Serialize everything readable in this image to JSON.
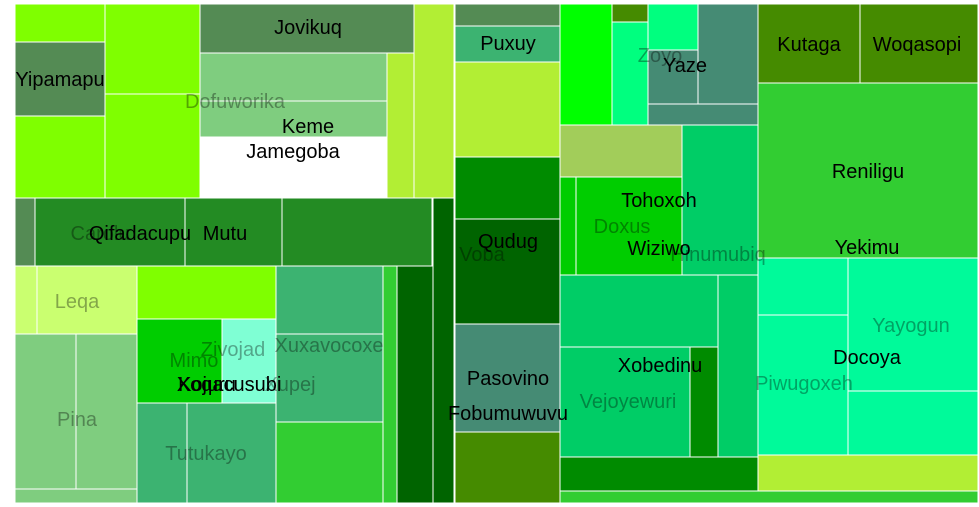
{
  "chart_data": {
    "type": "treemap",
    "title": "",
    "cells": [
      {
        "c": "#7fff00",
        "v": 1
      },
      {
        "c": "#548b54",
        "v": 1
      },
      {
        "c": "#7fff00",
        "v": 1
      },
      {
        "c": "#7fff00",
        "v": 1
      },
      {
        "c": "#7fff00",
        "v": 1
      },
      {
        "c": "#7fcd7f",
        "v": 1
      },
      {
        "c": "#7fcd7f",
        "v": 1
      },
      {
        "c": "#b2ee34",
        "v": 1
      },
      {
        "c": "#b2ee34",
        "v": 1
      },
      {
        "c": "#548b54",
        "v": 1
      },
      {
        "c": "#548b54",
        "v": 1
      },
      {
        "c": "#548b54",
        "v": 1
      },
      {
        "c": "#238b23",
        "v": 1
      },
      {
        "c": "#238b23",
        "v": 1
      },
      {
        "c": "#238b23",
        "v": 1
      },
      {
        "c": "#caff70",
        "v": 1
      },
      {
        "c": "#caff70",
        "v": 1
      },
      {
        "c": "#7fcd7f",
        "v": 1
      },
      {
        "c": "#7fcd7f",
        "v": 1
      },
      {
        "c": "#7fcd7f",
        "v": 1
      },
      {
        "c": "#7fff00",
        "v": 1
      },
      {
        "c": "#00cd00",
        "v": 1
      },
      {
        "c": "#7fffd4",
        "v": 1
      },
      {
        "c": "#3cb371",
        "v": 1
      },
      {
        "c": "#3cb371",
        "v": 1
      },
      {
        "c": "#3cb371",
        "v": 1
      },
      {
        "c": "#3cb371",
        "v": 1
      },
      {
        "c": "#32cd32",
        "v": 1
      },
      {
        "c": "#32cd32",
        "v": 1
      },
      {
        "c": "#006400",
        "v": 1
      },
      {
        "c": "#006400",
        "v": 1
      },
      {
        "c": "#3cb371",
        "v": 1
      },
      {
        "c": "#b2ee34",
        "v": 1
      },
      {
        "c": "#008b00",
        "v": 1
      },
      {
        "c": "#006400",
        "v": 1
      },
      {
        "c": "#458b74",
        "v": 1
      },
      {
        "c": "#458b00",
        "v": 1
      },
      {
        "c": "#00ff00",
        "v": 1
      },
      {
        "c": "#458b00",
        "v": 1
      },
      {
        "c": "#00ff7f",
        "v": 1
      },
      {
        "c": "#00ff7f",
        "v": 1
      },
      {
        "c": "#458b74",
        "v": 1
      },
      {
        "c": "#458b74",
        "v": 1
      },
      {
        "c": "#458b74",
        "v": 1
      },
      {
        "c": "#a2cd5a",
        "v": 1
      },
      {
        "c": "#00cd00",
        "v": 1
      },
      {
        "c": "#00cd00",
        "v": 1
      },
      {
        "c": "#00cd66",
        "v": 1
      },
      {
        "c": "#00cd66",
        "v": 1
      },
      {
        "c": "#00cd66",
        "v": 1
      },
      {
        "c": "#008b00",
        "v": 1
      },
      {
        "c": "#00cd66",
        "v": 1
      },
      {
        "c": "#008b00",
        "v": 1
      },
      {
        "c": "#32cd32",
        "v": 1
      },
      {
        "c": "#458b00",
        "v": 1
      },
      {
        "c": "#458b00",
        "v": 1
      },
      {
        "c": "#32cd32",
        "v": 1
      },
      {
        "c": "#00fa9a",
        "v": 1
      },
      {
        "c": "#00fa9a",
        "v": 1
      },
      {
        "c": "#00fa9a",
        "v": 1
      },
      {
        "c": "#00fa9a",
        "v": 1
      },
      {
        "c": "#b2ee34",
        "v": 1
      },
      {
        "c": "#00fa9a",
        "v": 1
      },
      {
        "c": "#00cd00",
        "v": 1
      },
      {
        "c": "#458b00",
        "v": 1
      },
      {
        "c": "#b2ee34",
        "v": 1
      },
      {
        "c": "#b2ee34",
        "v": 1
      },
      {
        "c": "#238b23",
        "v": 1
      },
      {
        "c": "#238b23",
        "v": 1
      },
      {
        "c": "#caff70",
        "v": 1
      },
      {
        "c": "#caff70",
        "v": 1
      },
      {
        "c": "#caff70",
        "v": 1
      },
      {
        "c": "#caff70",
        "v": 1
      },
      {
        "c": "#008b00",
        "v": 1
      },
      {
        "c": "#a2cd5a",
        "v": 1
      },
      {
        "c": "#7fff00",
        "v": 1
      },
      {
        "c": "#a2cd5a",
        "v": 1
      },
      {
        "c": "#008b00",
        "v": 1
      },
      {
        "c": "#7fff00",
        "v": 1
      },
      {
        "c": "#00ff00",
        "v": 1
      }
    ],
    "labels": [
      {
        "text": "Yipamapu",
        "faded": false
      },
      {
        "text": "Jovikuq",
        "faded": false
      },
      {
        "text": "Dofuworika",
        "faded": true
      },
      {
        "text": "Keme",
        "faded": false
      },
      {
        "text": "Jamegoba",
        "faded": false
      },
      {
        "text": "Carolu",
        "faded": true
      },
      {
        "text": "Qifadacupu",
        "faded": false
      },
      {
        "text": "Mutu",
        "faded": false
      },
      {
        "text": "Leqa",
        "faded": true
      },
      {
        "text": "Pina",
        "faded": true
      },
      {
        "text": "Zivojad",
        "faded": true
      },
      {
        "text": "Mimo",
        "faded": true
      },
      {
        "text": "Kojuru",
        "faded": false
      },
      {
        "text": "Xoqacusubi",
        "faded": false
      },
      {
        "text": "Xupej",
        "faded": true
      },
      {
        "text": "Xuxavocoxe",
        "faded": true
      },
      {
        "text": "Tutukayo",
        "faded": true
      },
      {
        "text": "Puxuy",
        "faded": false
      },
      {
        "text": "Qudug",
        "faded": false
      },
      {
        "text": "Voba",
        "faded": true
      },
      {
        "text": "Pasovino",
        "faded": false
      },
      {
        "text": "Fobumuwuvu",
        "faded": false
      },
      {
        "text": "Zoyo",
        "faded": true
      },
      {
        "text": "Yaze",
        "faded": false
      },
      {
        "text": "Tohoxoh",
        "faded": false
      },
      {
        "text": "Doxus",
        "faded": true
      },
      {
        "text": "Wiziwo",
        "faded": false
      },
      {
        "text": "Hinumubiq",
        "faded": true
      },
      {
        "text": "Xobedinu",
        "faded": false
      },
      {
        "text": "Vejoyewuri",
        "faded": true
      },
      {
        "text": "Piwugoxeh",
        "faded": true
      },
      {
        "text": "Kutaga",
        "faded": false
      },
      {
        "text": "Woqasopi",
        "faded": false
      },
      {
        "text": "Reniligu",
        "faded": false
      },
      {
        "text": "Yekimu",
        "faded": false
      },
      {
        "text": "Yayogun",
        "faded": true
      },
      {
        "text": "Docoya",
        "faded": false
      }
    ]
  }
}
